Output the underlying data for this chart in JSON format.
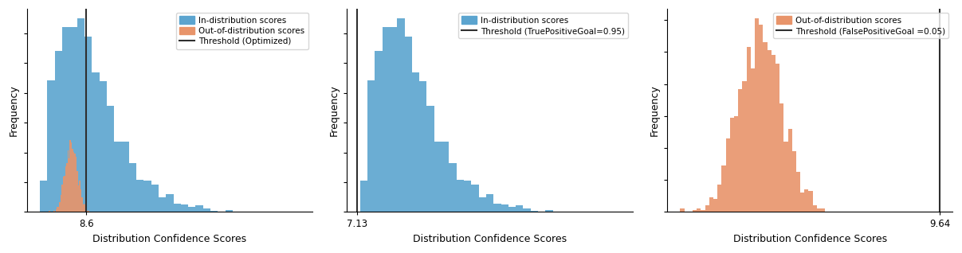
{
  "blue_color": "#5BA4CF",
  "orange_color": "#E8946A",
  "threshold_color": "#2f2f2f",
  "xlabel": "Distribution Confidence Scores",
  "ylabel": "Frequency",
  "plot1": {
    "threshold": 8.6,
    "xtick": "8.6",
    "legend_labels": [
      "In-distribution scores",
      "Out-of-distribution scores",
      "Threshold (Optimized)"
    ]
  },
  "plot2": {
    "threshold": 7.13,
    "xtick": "7.13",
    "legend_labels": [
      "In-distribution scores",
      "Threshold (TruePositiveGoal=0.95)"
    ]
  },
  "plot3": {
    "threshold": 9.64,
    "xtick": "9.64",
    "legend_labels": [
      "Out-of-distribution scores",
      "Threshold (FalsePositiveGoal =0.05)"
    ]
  },
  "bins": 35,
  "figsize": [
    12.07,
    3.18
  ],
  "dpi": 100
}
